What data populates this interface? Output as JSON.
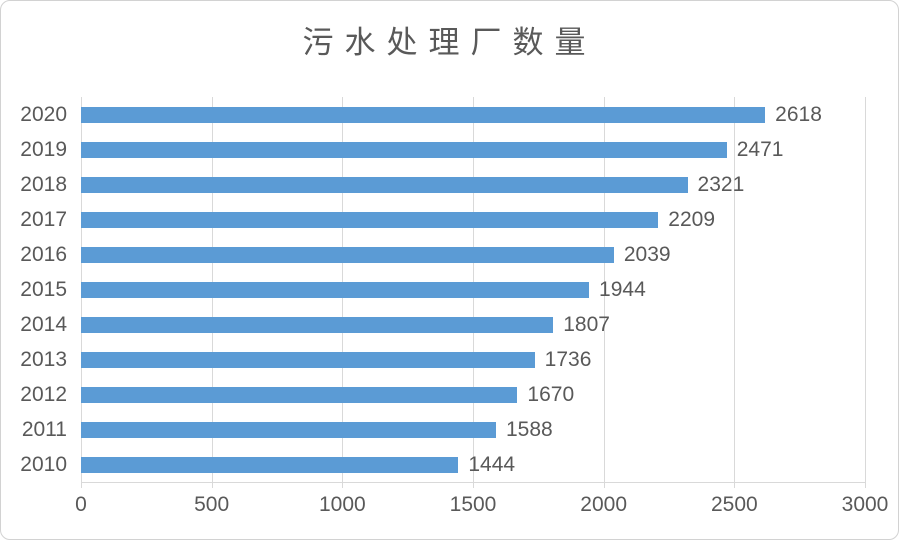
{
  "chart_data": {
    "type": "bar",
    "orientation": "horizontal",
    "title": "污水处理厂数量",
    "categories": [
      "2020",
      "2019",
      "2018",
      "2017",
      "2016",
      "2015",
      "2014",
      "2013",
      "2012",
      "2011",
      "2010"
    ],
    "values": [
      2618,
      2471,
      2321,
      2209,
      2039,
      1944,
      1807,
      1736,
      1670,
      1588,
      1444
    ],
    "xlabel": "",
    "ylabel": "",
    "xlim": [
      0,
      3000
    ],
    "x_ticks": [
      0,
      500,
      1000,
      1500,
      2000,
      2500,
      3000
    ],
    "grid": true,
    "legend": false,
    "data_labels": true,
    "colors": {
      "bar": "#5B9BD5",
      "text": "#595959",
      "gridline": "#D9D9D9",
      "border": "#D2D2D2",
      "background": "#FFFFFF"
    }
  }
}
